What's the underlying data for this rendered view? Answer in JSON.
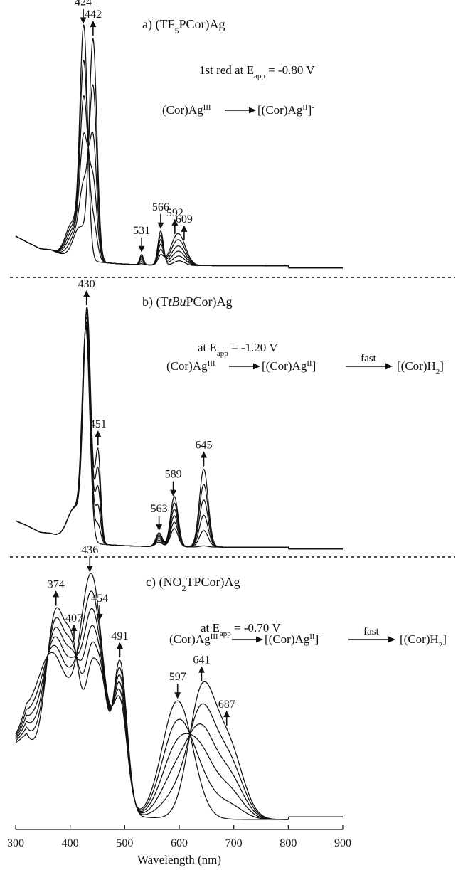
{
  "chart_data": {
    "type": "line",
    "x_axis": {
      "label": "Wavelength (nm)",
      "range": [
        300,
        900
      ],
      "ticks": [
        300,
        400,
        500,
        600,
        700,
        800,
        900
      ]
    },
    "panels": [
      {
        "id": "a",
        "title": {
          "prefix": "a) (TF",
          "sub": "5",
          "suffix": "PCor)Ag"
        },
        "condition": {
          "pre": "1st red at E",
          "sub": "app",
          "post": " = -0.80 V"
        },
        "scheme": {
          "reactant": {
            "text": "(Cor)Ag",
            "sup": "III"
          },
          "product1": {
            "text": "[(Cor)Ag",
            "sup": "II",
            "close": "]",
            "charge": "-"
          }
        },
        "peak_labels": [
          {
            "wavelength": 424,
            "label": "424",
            "direction": "down"
          },
          {
            "wavelength": 442,
            "label": "442",
            "direction": "up"
          },
          {
            "wavelength": 531,
            "label": "531",
            "direction": "down"
          },
          {
            "wavelength": 566,
            "label": "566",
            "direction": "down"
          },
          {
            "wavelength": 592,
            "label": "592",
            "direction": "up"
          },
          {
            "wavelength": 609,
            "label": "609",
            "direction": "up"
          }
        ],
        "baseline": 0.02,
        "start_shape": {
          "x": [
            300,
            320,
            345,
            365
          ],
          "y": [
            0.15,
            0.125,
            0.095,
            0.09
          ]
        },
        "tail": 0.005,
        "progress": [
          0,
          0.18,
          0.36,
          0.55,
          0.78,
          1.0
        ],
        "peaks_initial": [
          {
            "center": 425,
            "width": 7,
            "height": 1.0
          },
          {
            "center": 404,
            "width": 12,
            "height": 0.15
          },
          {
            "center": 566,
            "width": 5,
            "height": 0.15
          },
          {
            "center": 531,
            "width": 3.5,
            "height": 0.045
          },
          {
            "center": 600,
            "width": 10,
            "height": 0.02
          }
        ],
        "peaks_final": [
          {
            "center": 442,
            "width": 7,
            "height": 0.96
          },
          {
            "center": 418,
            "width": 12,
            "height": 0.14
          },
          {
            "center": 566,
            "width": 5,
            "height": 0.04
          },
          {
            "center": 531,
            "width": 3.5,
            "height": 0.005
          },
          {
            "center": 598,
            "width": 13,
            "height": 0.14
          }
        ]
      },
      {
        "id": "b",
        "title": {
          "prefix": "b) (T",
          "italic": "tBu",
          "suffix": "PCor)Ag"
        },
        "condition": {
          "pre": "at E",
          "sub": "app",
          "post": " = -1.20 V"
        },
        "scheme": {
          "reactant": {
            "text": "(Cor)Ag",
            "sup": "III"
          },
          "product1": {
            "text": "[(Cor)Ag",
            "sup": "II",
            "close": "]",
            "charge": "-"
          },
          "arrow2_label": "fast",
          "product2": {
            "text": "[(Cor)H",
            "sub": "2",
            "close": "]",
            "charge": "-"
          }
        },
        "peak_labels": [
          {
            "wavelength": 430,
            "label": "430",
            "direction": "up"
          },
          {
            "wavelength": 451,
            "label": "451",
            "direction": "up"
          },
          {
            "wavelength": 563,
            "label": "563",
            "direction": "down"
          },
          {
            "wavelength": 589,
            "label": "589",
            "direction": "down"
          },
          {
            "wavelength": 645,
            "label": "645",
            "direction": "up"
          }
        ],
        "baseline": 0.015,
        "start_shape": {
          "x": [
            300,
            320,
            345,
            365
          ],
          "y": [
            0.13,
            0.11,
            0.08,
            0.075
          ]
        },
        "tail": 0.005,
        "progress": [
          0,
          0.2,
          0.4,
          0.6,
          0.8,
          1.0
        ],
        "peaks_initial": [
          {
            "center": 429,
            "width": 7,
            "height": 0.9
          },
          {
            "center": 408,
            "width": 13,
            "height": 0.14
          },
          {
            "center": 591,
            "width": 7,
            "height": 0.22
          },
          {
            "center": 563,
            "width": 6,
            "height": 0.06
          },
          {
            "center": 645,
            "width": 7,
            "height": 0.005
          }
        ],
        "peaks_final": [
          {
            "center": 431,
            "width": 7,
            "height": 1.0
          },
          {
            "center": 451,
            "width": 5,
            "height": 0.4
          },
          {
            "center": 408,
            "width": 13,
            "height": 0.14
          },
          {
            "center": 591,
            "width": 7,
            "height": 0.08
          },
          {
            "center": 563,
            "width": 6,
            "height": 0.02
          },
          {
            "center": 645,
            "width": 8,
            "height": 0.34
          }
        ]
      },
      {
        "id": "c",
        "title": {
          "prefix": "c) (NO",
          "sub": "2",
          "suffix": "TPCor)Ag"
        },
        "condition": {
          "pre": "at E",
          "sub": "app",
          "post": " = -0.70 V"
        },
        "scheme": {
          "reactant": {
            "text": "(Cor)Ag",
            "sup": "III"
          },
          "product1": {
            "text": "[(Cor)Ag",
            "sup": "II",
            "close": "]",
            "charge": "-"
          },
          "arrow2_label": "fast",
          "product2": {
            "text": "[(Cor)H",
            "sub": "2",
            "close": "]",
            "charge": "-"
          }
        },
        "peak_labels": [
          {
            "wavelength": 374,
            "label": "374",
            "direction": "up"
          },
          {
            "wavelength": 407,
            "label": "407",
            "direction": "up"
          },
          {
            "wavelength": 436,
            "label": "436",
            "direction": "down"
          },
          {
            "wavelength": 454,
            "label": "454",
            "direction": "down"
          },
          {
            "wavelength": 491,
            "label": "491",
            "direction": "up"
          },
          {
            "wavelength": 597,
            "label": "597",
            "direction": "down"
          },
          {
            "wavelength": 641,
            "label": "641",
            "direction": "up"
          },
          {
            "wavelength": 687,
            "label": "687",
            "direction": "up"
          }
        ],
        "baseline": 0.0,
        "start_shape": {
          "x": [
            300,
            320
          ],
          "y": [
            0.3,
            0.33
          ]
        },
        "tail": 0.01,
        "progress": [
          0,
          0.2,
          0.4,
          0.6,
          0.8,
          1.0
        ],
        "peaks_initial": [
          {
            "center": 370,
            "width": 30,
            "height": 0.5
          },
          {
            "center": 440,
            "width": 22,
            "height": 0.88
          },
          {
            "center": 492,
            "width": 13,
            "height": 0.4
          },
          {
            "center": 597,
            "width": 28,
            "height": 0.46
          }
        ],
        "peaks_final": [
          {
            "center": 374,
            "width": 18,
            "height": 0.66
          },
          {
            "center": 407,
            "width": 14,
            "height": 0.48
          },
          {
            "center": 440,
            "width": 12,
            "height": 0.5
          },
          {
            "center": 460,
            "width": 10,
            "height": 0.36
          },
          {
            "center": 491,
            "width": 13,
            "height": 0.6
          },
          {
            "center": 641,
            "width": 24,
            "height": 0.48
          },
          {
            "center": 690,
            "width": 26,
            "height": 0.28
          }
        ]
      }
    ]
  }
}
